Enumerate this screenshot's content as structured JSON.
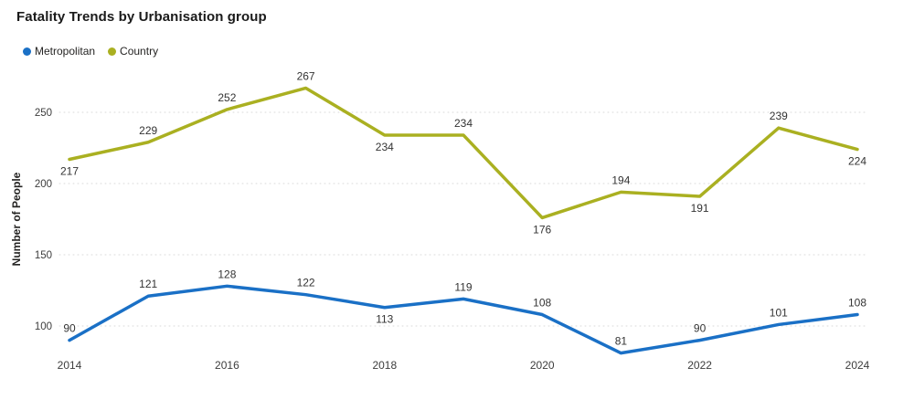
{
  "chart_data": {
    "type": "line",
    "title": "Fatality Trends by Urbanisation group",
    "xlabel": "",
    "ylabel": "Number of People",
    "x": [
      2014,
      2015,
      2016,
      2017,
      2018,
      2019,
      2020,
      2021,
      2022,
      2023,
      2024
    ],
    "x_axis_labels": [
      "2014",
      "2016",
      "2018",
      "2020",
      "2022",
      "2024"
    ],
    "y_ticks": [
      100,
      150,
      200,
      250
    ],
    "ylim": [
      75,
      280
    ],
    "grid": "horizontal-dotted",
    "legend_position": "top-left",
    "series": [
      {
        "name": "Metropolitan",
        "color": "#1A70C6",
        "values": [
          90,
          121,
          128,
          122,
          113,
          119,
          108,
          81,
          90,
          101,
          108
        ],
        "label_placement": [
          "above",
          "above",
          "above",
          "above",
          "below",
          "above",
          "above",
          "above",
          "above",
          "above",
          "above"
        ]
      },
      {
        "name": "Country",
        "color": "#AAB021",
        "values": [
          217,
          229,
          252,
          267,
          234,
          234,
          176,
          194,
          191,
          239,
          224
        ],
        "label_placement": [
          "below",
          "above",
          "above",
          "above",
          "below",
          "above",
          "below",
          "above",
          "below",
          "above",
          "below"
        ]
      }
    ],
    "grid_color": "#D9D9D9",
    "label_color": "#333333"
  }
}
